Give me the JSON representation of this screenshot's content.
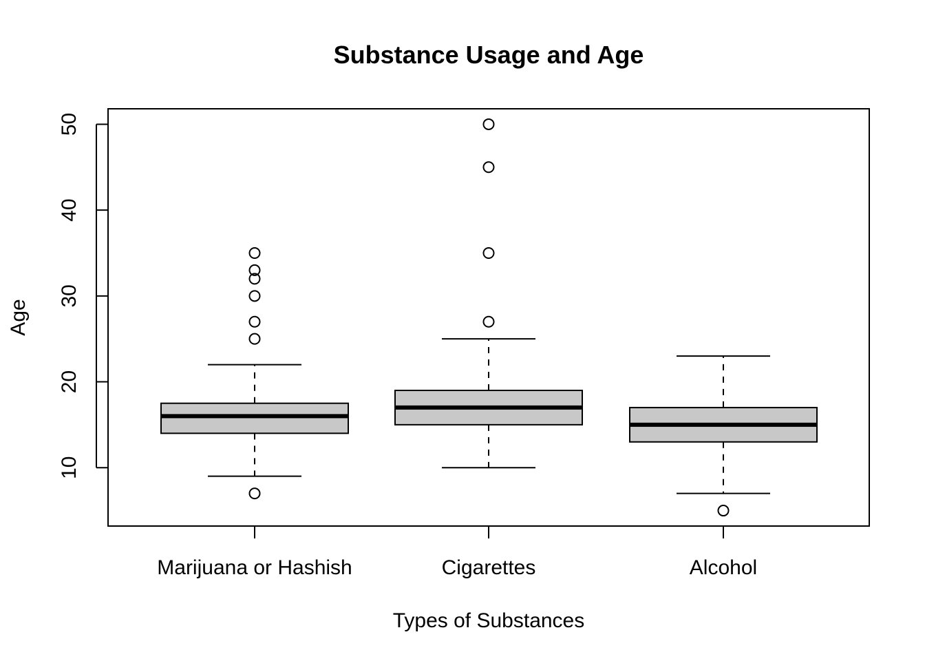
{
  "chart_data": {
    "type": "boxplot",
    "title": "Substance Usage and Age",
    "xlabel": "Types of Substances",
    "ylabel": "Age",
    "ylim": [
      3.2,
      51.8
    ],
    "yticks": [
      10,
      20,
      30,
      40,
      50
    ],
    "grid": false,
    "legend": "none",
    "colors": {
      "box_fill": "#c8c8c8",
      "stroke": "#000000"
    },
    "categories": [
      "Marijuana or Hashish",
      "Cigarettes",
      "Alcohol"
    ],
    "boxes": [
      {
        "name": "Marijuana or Hashish",
        "whisker_low": 9,
        "q1": 14,
        "median": 16,
        "q3": 17.5,
        "whisker_high": 22,
        "outliers": [
          7,
          25,
          27,
          30,
          32,
          33,
          35
        ]
      },
      {
        "name": "Cigarettes",
        "whisker_low": 10,
        "q1": 15,
        "median": 17,
        "q3": 19,
        "whisker_high": 25,
        "outliers": [
          27,
          35,
          45,
          50
        ]
      },
      {
        "name": "Alcohol",
        "whisker_low": 7,
        "q1": 13,
        "median": 15,
        "q3": 17,
        "whisker_high": 23,
        "outliers": [
          5
        ]
      }
    ]
  }
}
